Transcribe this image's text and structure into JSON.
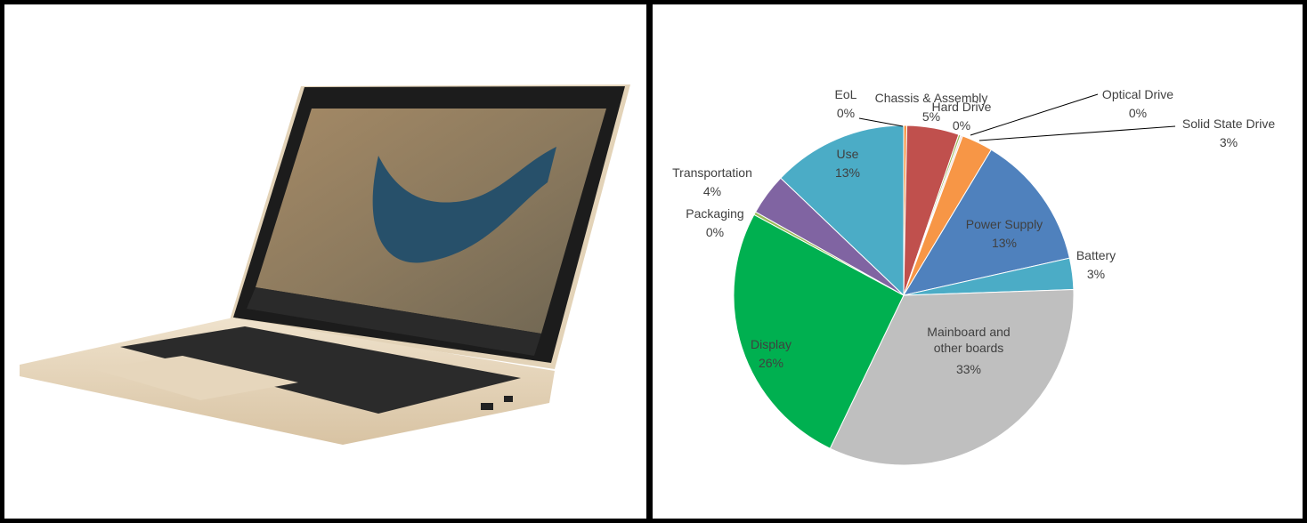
{
  "chart_data": {
    "type": "pie",
    "categories": [
      "EoL",
      "Chassis & Assembly",
      "Hard Drive",
      "Optical Drive",
      "Solid State Drive",
      "Power Supply",
      "Battery",
      "Mainboard and other boards",
      "Display",
      "Packaging",
      "Transportation",
      "Use"
    ],
    "values": [
      0.3,
      5,
      0.2,
      0.2,
      3,
      13,
      3,
      33,
      26,
      0.3,
      4,
      13
    ],
    "value_labels": [
      "0%",
      "5%",
      "0%",
      "0%",
      "3%",
      "13%",
      "3%",
      "33%",
      "26%",
      "0%",
      "4%",
      "13%"
    ],
    "colors": [
      "#f79646",
      "#c0504d",
      "#9bbb59",
      "#f2dcdb",
      "#f79646",
      "#4f81bd",
      "#4bacc6",
      "#bfbfbf",
      "#00b050",
      "#9bbb59",
      "#8064a2",
      "#4bacc6"
    ]
  }
}
